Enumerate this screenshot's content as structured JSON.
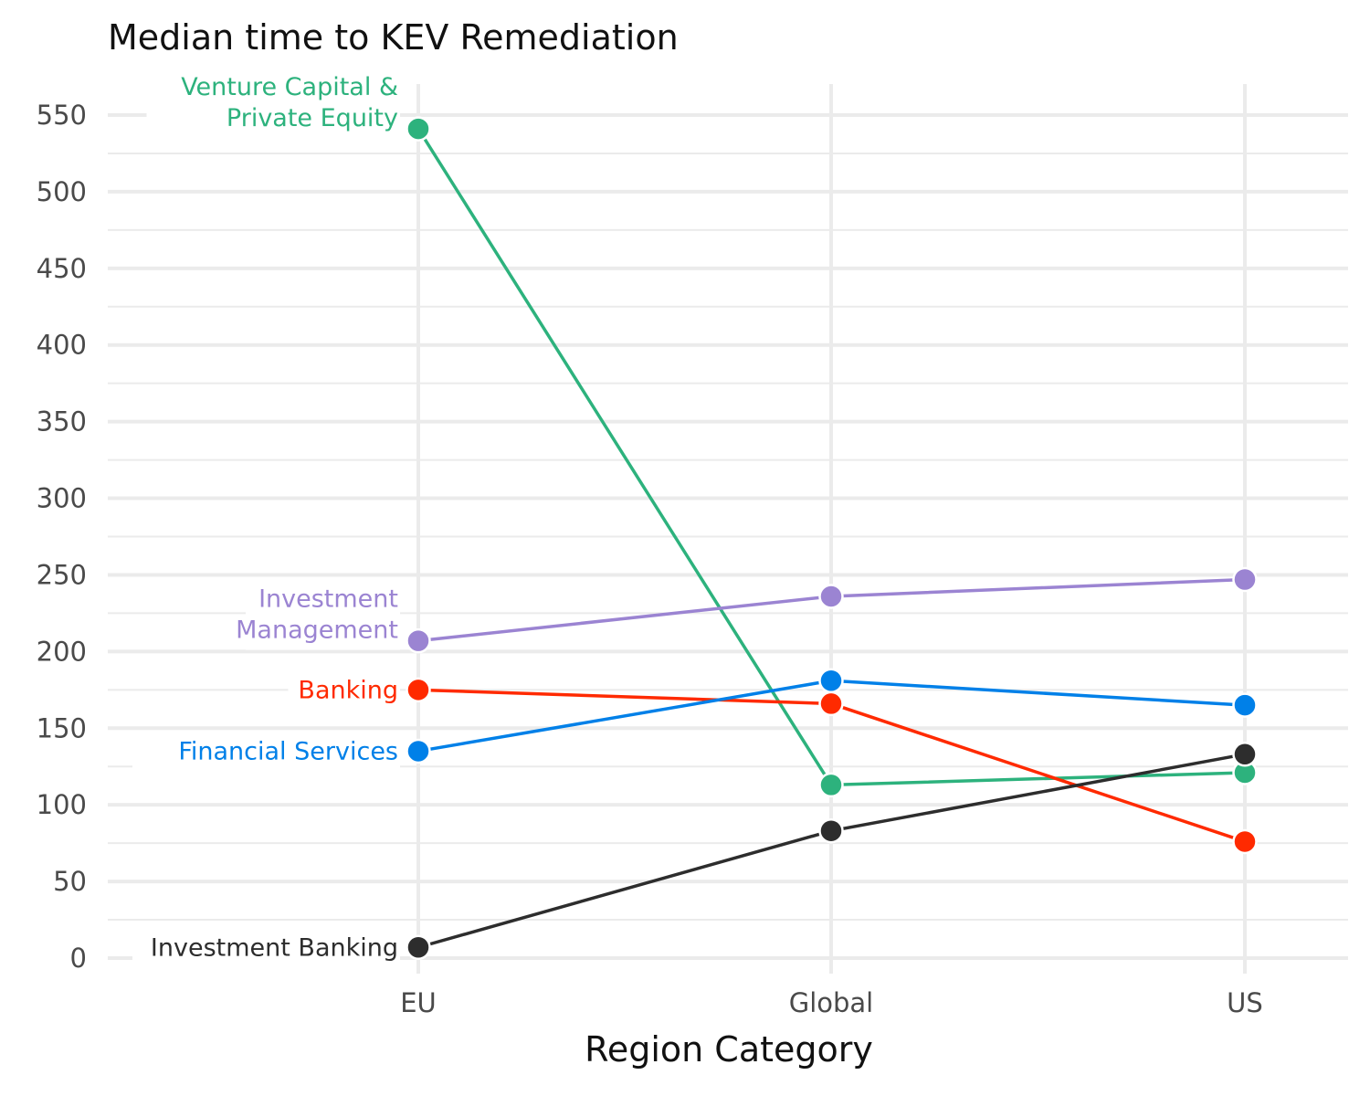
{
  "chart_data": {
    "type": "line",
    "title": "Median time to KEV Remediation",
    "xlabel": "Region Category",
    "ylabel": "",
    "categories": [
      "EU",
      "Global",
      "US"
    ],
    "ylim": [
      0,
      560
    ],
    "yticks": [
      0,
      50,
      100,
      150,
      200,
      250,
      300,
      350,
      400,
      450,
      500,
      550
    ],
    "grid": true,
    "legend": "direct labels at left of EU points",
    "series": [
      {
        "name": "Venture Capital & Private Equity",
        "label_lines": [
          "Venture Capital &",
          "Private Equity"
        ],
        "color": "#2db27d",
        "values": [
          541,
          113,
          121
        ]
      },
      {
        "name": "Investment Management",
        "label_lines": [
          "Investment",
          "Management"
        ],
        "color": "#9b84d2",
        "values": [
          207,
          236,
          247
        ]
      },
      {
        "name": "Banking",
        "label_lines": [
          "Banking"
        ],
        "color": "#ff2a00",
        "values": [
          175,
          166,
          76
        ]
      },
      {
        "name": "Financial Services",
        "label_lines": [
          "Financial Services"
        ],
        "color": "#0080e8",
        "values": [
          135,
          181,
          165
        ]
      },
      {
        "name": "Investment Banking",
        "label_lines": [
          "Investment Banking"
        ],
        "color": "#2d2d2d",
        "values": [
          7,
          83,
          133
        ]
      }
    ]
  }
}
